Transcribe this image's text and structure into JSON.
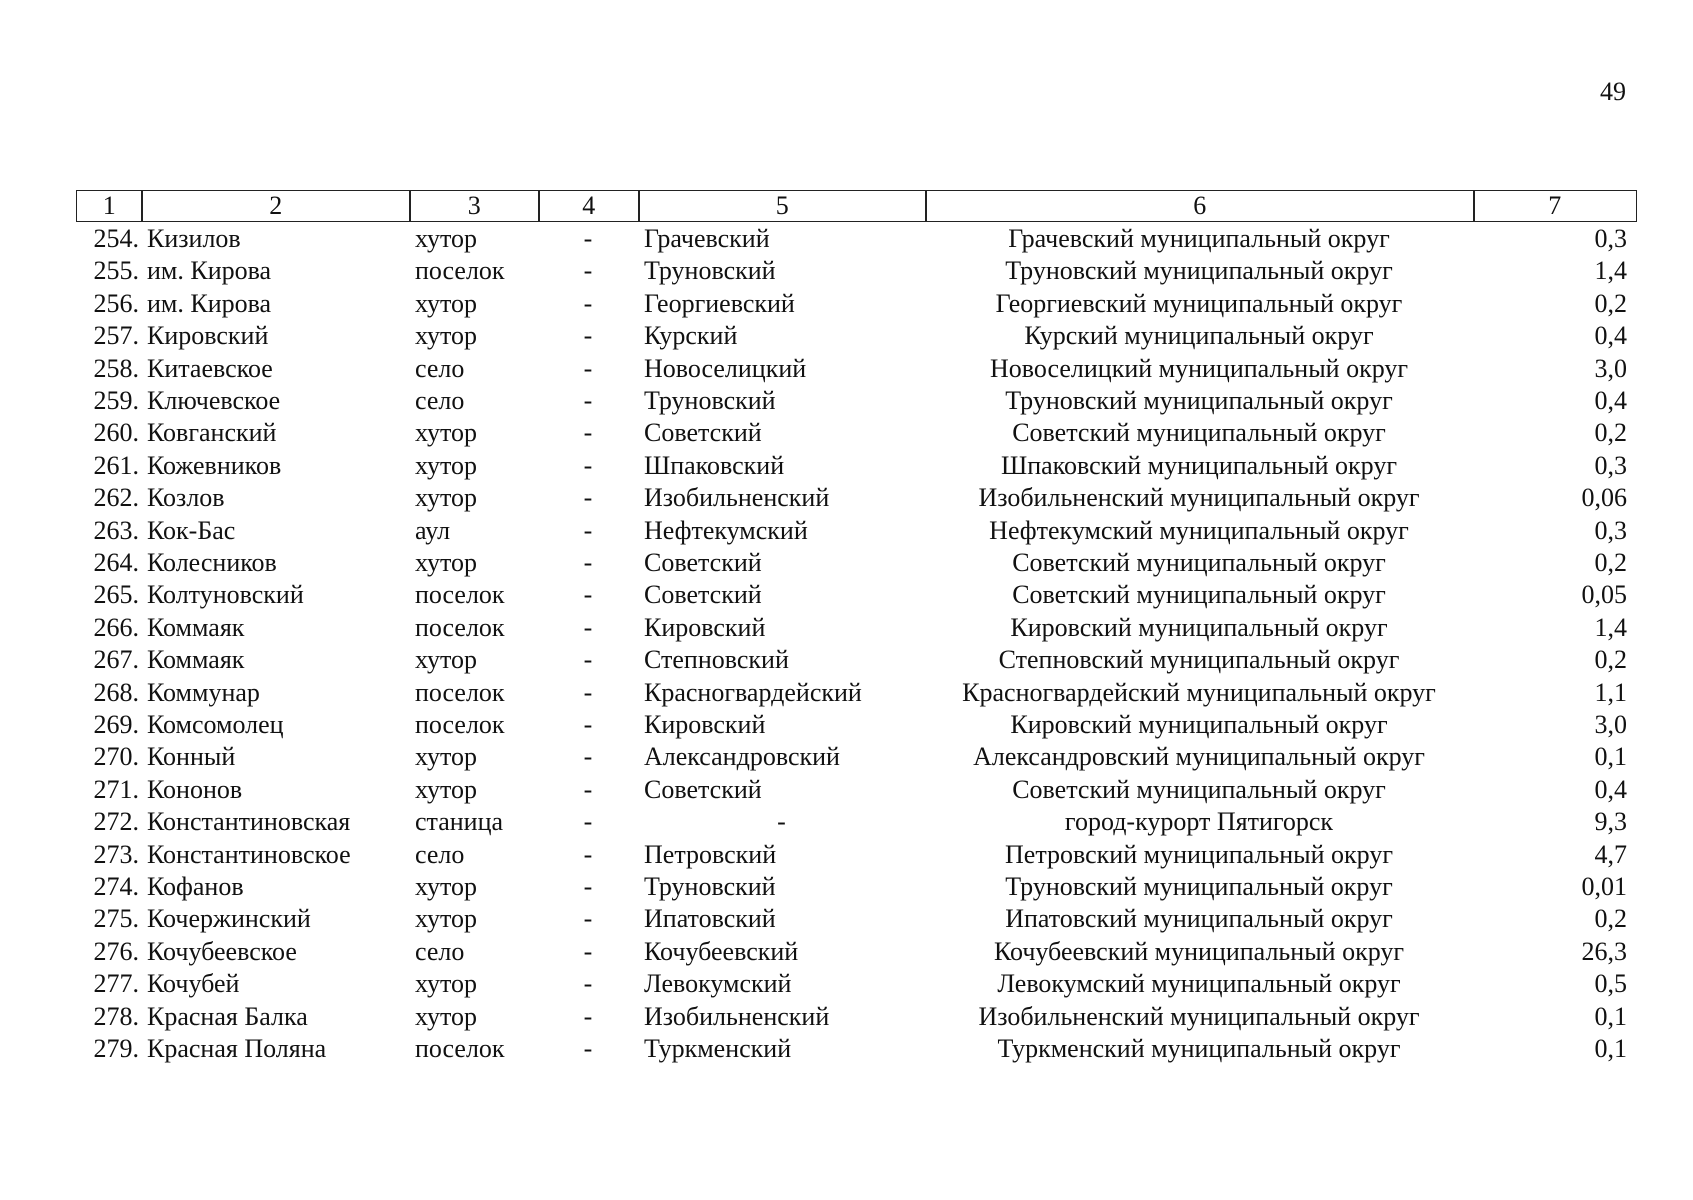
{
  "page_number": "49",
  "table": {
    "header": [
      "1",
      "2",
      "3",
      "4",
      "5",
      "6",
      "7"
    ],
    "rows": [
      [
        "254.",
        "Кизилов",
        "хутор",
        "-",
        "Грачевский",
        "Грачевский муниципальный округ",
        "0,3"
      ],
      [
        "255.",
        "им. Кирова",
        "поселок",
        "-",
        "Труновский",
        "Труновский муниципальный округ",
        "1,4"
      ],
      [
        "256.",
        "им. Кирова",
        "хутор",
        "-",
        "Георгиевский",
        "Георгиевский муниципальный округ",
        "0,2"
      ],
      [
        "257.",
        "Кировский",
        "хутор",
        "-",
        "Курский",
        "Курский муниципальный округ",
        "0,4"
      ],
      [
        "258.",
        "Китаевское",
        "село",
        "-",
        "Новоселицкий",
        "Новоселицкий муниципальный округ",
        "3,0"
      ],
      [
        "259.",
        "Ключевское",
        "село",
        "-",
        "Труновский",
        "Труновский муниципальный округ",
        "0,4"
      ],
      [
        "260.",
        "Ковганский",
        "хутор",
        "-",
        "Советский",
        "Советский муниципальный округ",
        "0,2"
      ],
      [
        "261.",
        "Кожевников",
        "хутор",
        "-",
        "Шпаковский",
        "Шпаковский муниципальный округ",
        "0,3"
      ],
      [
        "262.",
        "Козлов",
        "хутор",
        "-",
        "Изобильненский",
        "Изобильненский муниципальный округ",
        "0,06"
      ],
      [
        "263.",
        "Кок-Бас",
        "аул",
        "-",
        "Нефтекумский",
        "Нефтекумский муниципальный округ",
        "0,3"
      ],
      [
        "264.",
        "Колесников",
        "хутор",
        "-",
        "Советский",
        "Советский муниципальный округ",
        "0,2"
      ],
      [
        "265.",
        "Колтуновский",
        "поселок",
        "-",
        "Советский",
        "Советский муниципальный округ",
        "0,05"
      ],
      [
        "266.",
        "Коммаяк",
        "поселок",
        "-",
        "Кировский",
        "Кировский муниципальный округ",
        "1,4"
      ],
      [
        "267.",
        "Коммаяк",
        "хутор",
        "-",
        "Степновский",
        "Степновский муниципальный округ",
        "0,2"
      ],
      [
        "268.",
        "Коммунар",
        "поселок",
        "-",
        "Красногвардейский",
        "Красногвардейский муниципальный округ",
        "1,1"
      ],
      [
        "269.",
        "Комсомолец",
        "поселок",
        "-",
        "Кировский",
        "Кировский муниципальный округ",
        "3,0"
      ],
      [
        "270.",
        "Конный",
        "хутор",
        "-",
        "Александровский",
        "Александровский муниципальный округ",
        "0,1"
      ],
      [
        "271.",
        "Кононов",
        "хутор",
        "-",
        "Советский",
        "Советский муниципальный округ",
        "0,4"
      ],
      [
        "272.",
        "Константиновская",
        "станица",
        "-",
        "-",
        "город-курорт Пятигорск",
        "9,3"
      ],
      [
        "273.",
        "Константиновское",
        "село",
        "-",
        "Петровский",
        "Петровский муниципальный округ",
        "4,7"
      ],
      [
        "274.",
        "Кофанов",
        "хутор",
        "-",
        "Труновский",
        "Труновский муниципальный округ",
        "0,01"
      ],
      [
        "275.",
        "Кочержинский",
        "хутор",
        "-",
        "Ипатовский",
        "Ипатовский муниципальный округ",
        "0,2"
      ],
      [
        "276.",
        "Кочубеевское",
        "село",
        "-",
        "Кочубеевский",
        "Кочубеевский муниципальный округ",
        "26,3"
      ],
      [
        "277.",
        "Кочубей",
        "хутор",
        "-",
        "Левокумский",
        "Левокумский муниципальный округ",
        "0,5"
      ],
      [
        "278.",
        "Красная Балка",
        "хутор",
        "-",
        "Изобильненский",
        "Изобильненский муниципальный округ",
        "0,1"
      ],
      [
        "279.",
        "Красная Поляна",
        "поселок",
        "-",
        "Туркменский",
        "Туркменский муниципальный округ",
        "0,1"
      ]
    ]
  }
}
